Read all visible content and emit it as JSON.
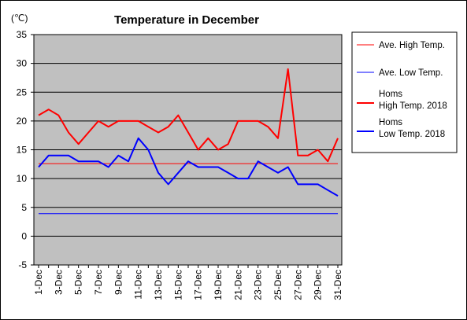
{
  "chart_data": {
    "type": "line",
    "title": "Temperature in December",
    "unit_label": "(℃)",
    "ylim": [
      -5,
      35
    ],
    "yticks": [
      -5,
      0,
      5,
      10,
      15,
      20,
      25,
      30,
      35
    ],
    "grid": true,
    "legend_position": "right",
    "plot_background": "#c0c0c0",
    "x": [
      "1-Dec",
      "2-Dec",
      "3-Dec",
      "4-Dec",
      "5-Dec",
      "6-Dec",
      "7-Dec",
      "8-Dec",
      "9-Dec",
      "10-Dec",
      "11-Dec",
      "12-Dec",
      "13-Dec",
      "14-Dec",
      "15-Dec",
      "16-Dec",
      "17-Dec",
      "18-Dec",
      "19-Dec",
      "20-Dec",
      "21-Dec",
      "22-Dec",
      "23-Dec",
      "24-Dec",
      "25-Dec",
      "26-Dec",
      "27-Dec",
      "28-Dec",
      "29-Dec",
      "30-Dec",
      "31-Dec"
    ],
    "xtick_labels": [
      "1-Dec",
      "3-Dec",
      "5-Dec",
      "7-Dec",
      "9-Dec",
      "11-Dec",
      "13-Dec",
      "15-Dec",
      "17-Dec",
      "19-Dec",
      "21-Dec",
      "23-Dec",
      "25-Dec",
      "27-Dec",
      "29-Dec",
      "31-Dec"
    ],
    "series": [
      {
        "name": "Ave. High Temp.",
        "color": "#ff0000",
        "width": 1,
        "values": [
          12.6,
          12.6,
          12.6,
          12.6,
          12.6,
          12.6,
          12.6,
          12.6,
          12.6,
          12.6,
          12.6,
          12.6,
          12.6,
          12.6,
          12.6,
          12.6,
          12.6,
          12.6,
          12.6,
          12.6,
          12.6,
          12.6,
          12.6,
          12.6,
          12.6,
          12.6,
          12.6,
          12.6,
          12.6,
          12.6,
          12.6
        ]
      },
      {
        "name": "Ave. Low Temp.",
        "color": "#0000ff",
        "width": 1,
        "values": [
          3.9,
          3.9,
          3.9,
          3.9,
          3.9,
          3.9,
          3.9,
          3.9,
          3.9,
          3.9,
          3.9,
          3.9,
          3.9,
          3.9,
          3.9,
          3.9,
          3.9,
          3.9,
          3.9,
          3.9,
          3.9,
          3.9,
          3.9,
          3.9,
          3.9,
          3.9,
          3.9,
          3.9,
          3.9,
          3.9,
          3.9
        ]
      },
      {
        "name": "Homs\nHigh Temp. 2018",
        "color": "#ff0000",
        "width": 2,
        "values": [
          21,
          22,
          21,
          18,
          16,
          18,
          20,
          19,
          20,
          20,
          20,
          19,
          18,
          19,
          21,
          18,
          15,
          17,
          15,
          16,
          20,
          20,
          20,
          19,
          17,
          29,
          14,
          14,
          15,
          13,
          17
        ]
      },
      {
        "name": "Homs\nLow Temp. 2018",
        "color": "#0000ff",
        "width": 2,
        "values": [
          12,
          14,
          14,
          14,
          13,
          13,
          13,
          12,
          14,
          13,
          17,
          15,
          11,
          9,
          11,
          13,
          12,
          12,
          12,
          11,
          10,
          10,
          13,
          12,
          11,
          12,
          9,
          9,
          9,
          8,
          7
        ]
      }
    ]
  }
}
